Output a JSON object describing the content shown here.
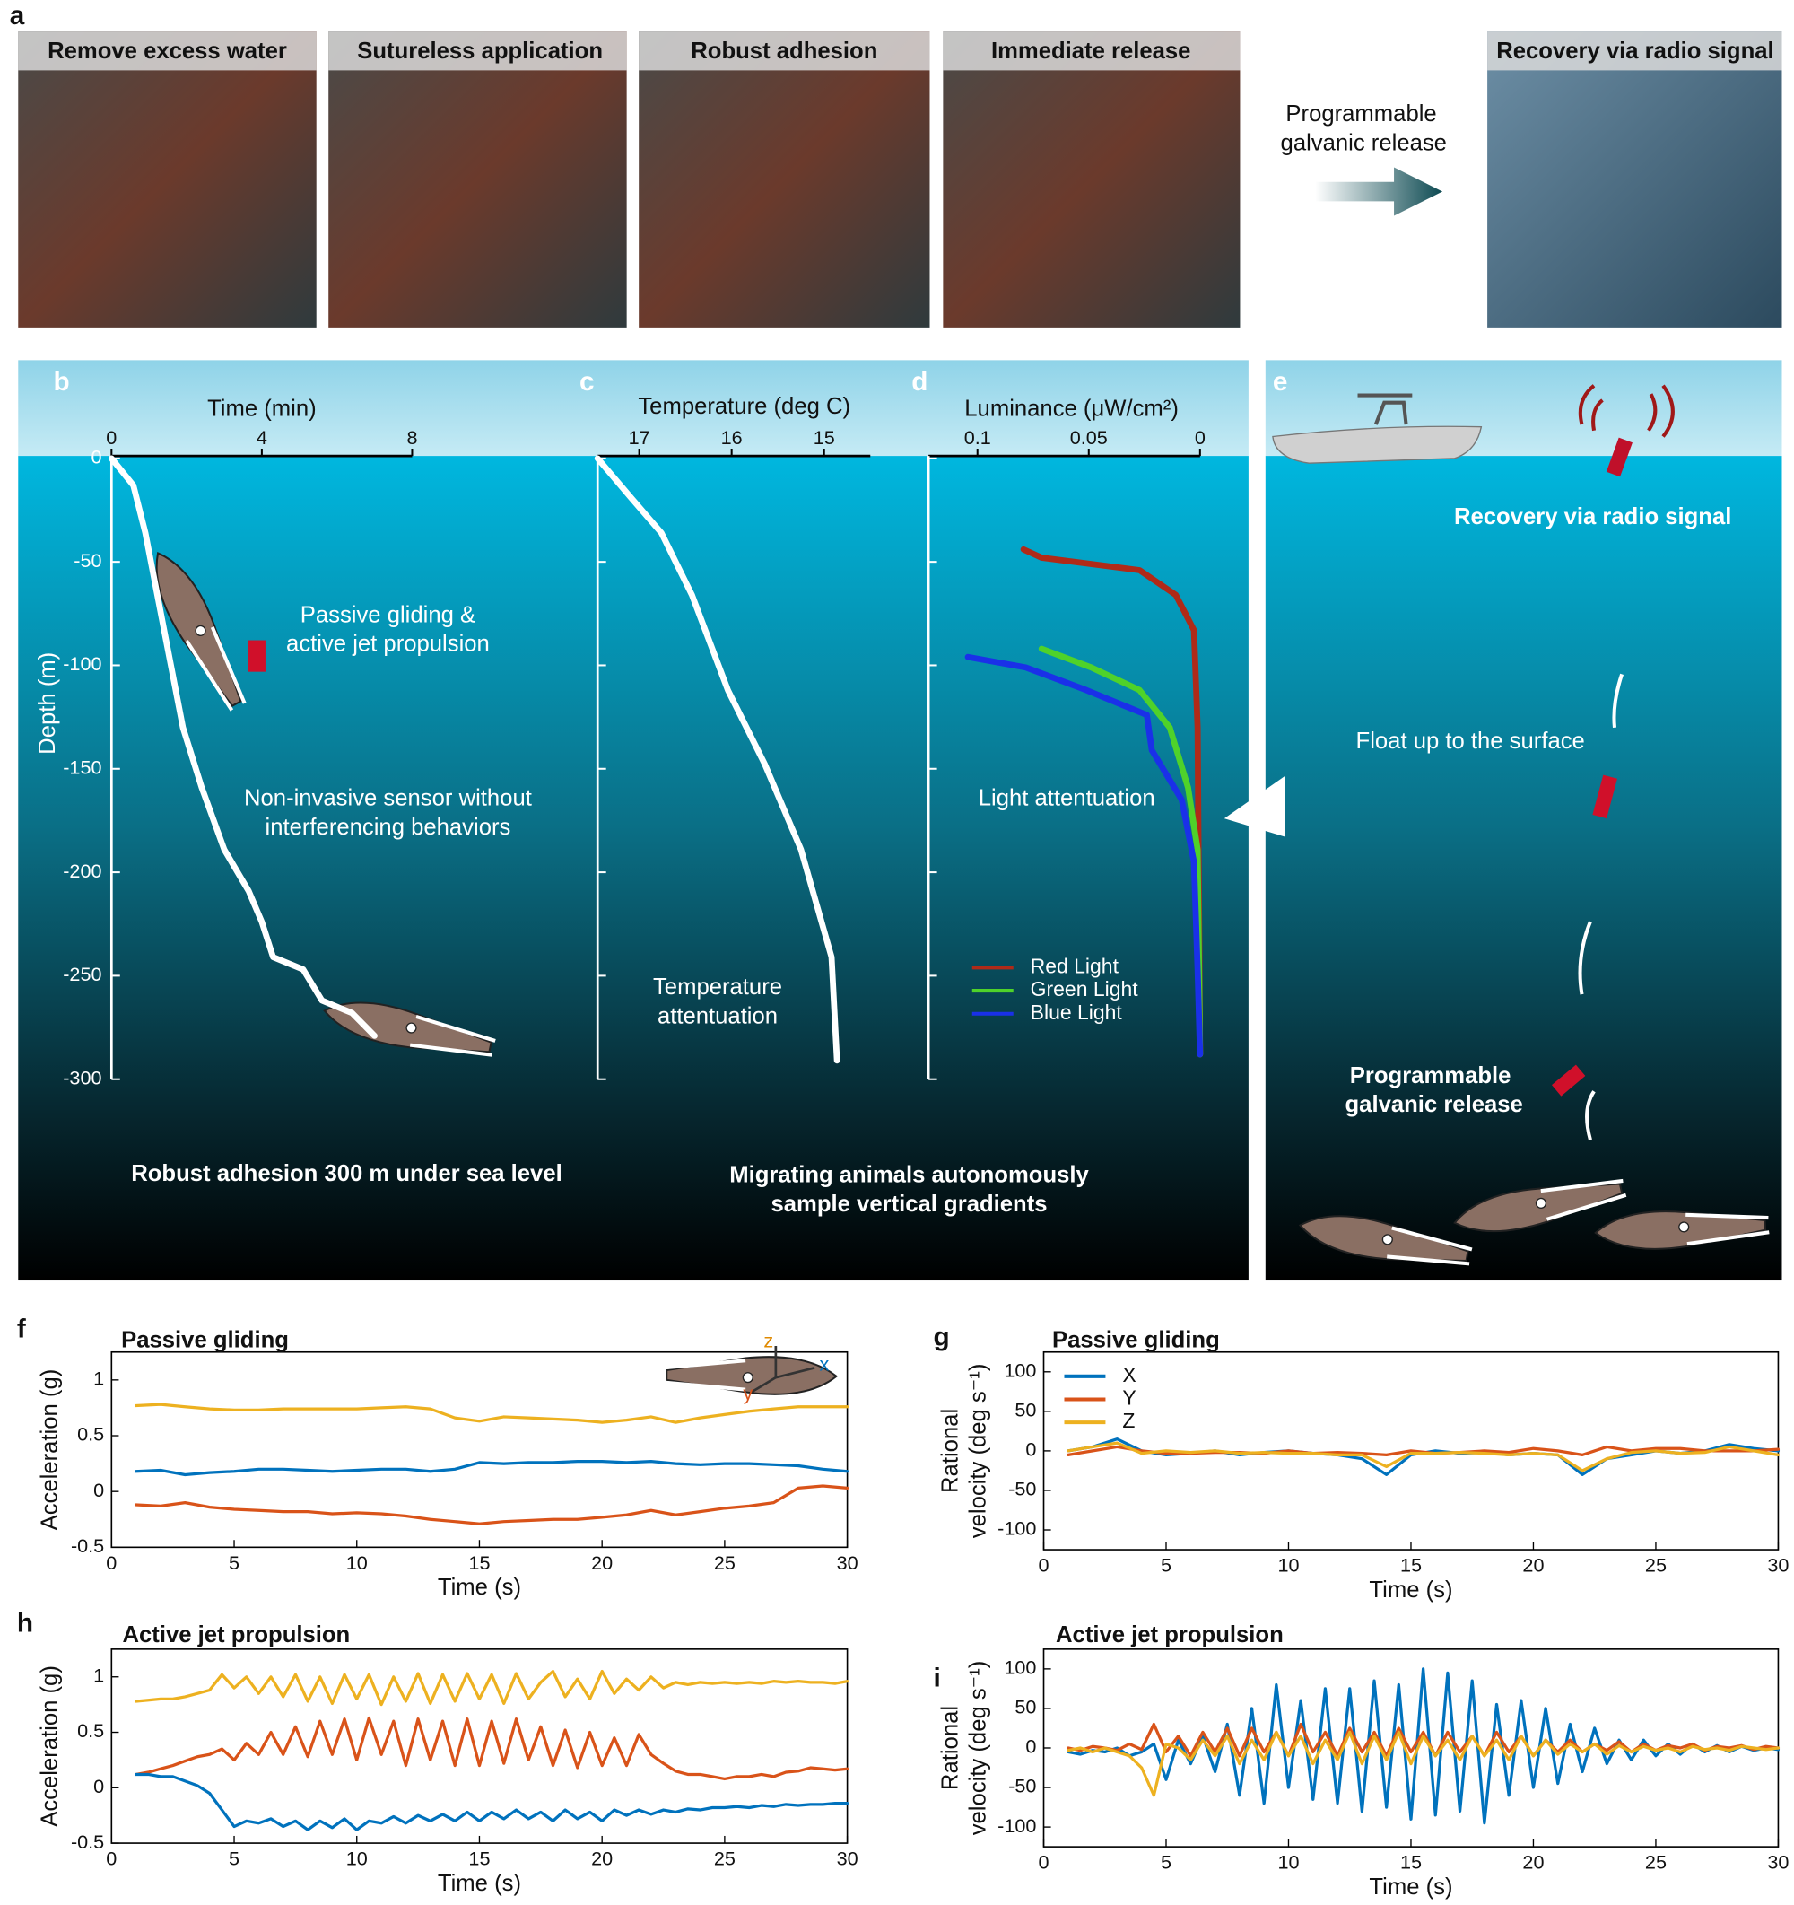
{
  "panel_a": {
    "label": "a",
    "photos": [
      "Remove excess water",
      "Sutureless application",
      "Robust adhesion",
      "Immediate release",
      "Recovery via radio signal"
    ],
    "arrow_text": [
      "Programmable",
      "galvanic release"
    ]
  },
  "panel_e": {
    "label": "e",
    "texts": [
      [
        "Recovery via radio signal"
      ],
      [
        "Float up to the surface"
      ],
      [
        "Programmable",
        "galvanic release"
      ]
    ]
  },
  "chart_data": [
    {
      "panel": "b",
      "type": "line",
      "xlabel": "Time (min)",
      "ylabel": "Depth (m)",
      "x": [
        0,
        0.58,
        0.9,
        1.4,
        1.9,
        2.4,
        3.0,
        3.65,
        4.0,
        4.3,
        5.1,
        5.6,
        6.4,
        7.0
      ],
      "series": [
        {
          "color": "#ffffff",
          "values": [
            0,
            -13,
            -36,
            -83,
            -130,
            -159,
            -189,
            -209,
            -224,
            -241,
            -247,
            -262,
            -268,
            -279
          ]
        }
      ],
      "xlim": [
        0,
        8
      ],
      "xticks": [
        0,
        4,
        8
      ],
      "ylim": [
        -300,
        0
      ],
      "yticks": [
        0,
        -50,
        -100,
        -150,
        -200,
        -250,
        -300
      ],
      "annotations": [
        [
          "Passive gliding &",
          "active jet propulsion"
        ],
        [
          "Non-invasive sensor without",
          "interferencing behaviors"
        ],
        [
          "Robust adhesion 300 m under sea level"
        ]
      ]
    },
    {
      "panel": "c",
      "type": "line",
      "xlabel": "Temperature (deg C)",
      "x": [
        17.45,
        17.09,
        16.76,
        16.43,
        16.04,
        15.64,
        15.25,
        14.92,
        14.86
      ],
      "series": [
        {
          "color": "#ffffff",
          "values": [
            0,
            -19,
            -36,
            -66,
            -112,
            -148,
            -189,
            -241,
            -291
          ]
        }
      ],
      "xlim": [
        17.45,
        14.5
      ],
      "xticks": [
        17,
        16,
        15
      ],
      "ylim": [
        -300,
        0
      ],
      "yticks": [
        0,
        -50,
        -100,
        -150,
        -200,
        -250,
        -300
      ],
      "annotations": [
        [
          "Temperature",
          "attentuation"
        ],
        [
          "Migrating animals autonomously",
          "sample vertical gradients"
        ]
      ]
    },
    {
      "panel": "d",
      "type": "line",
      "xlabel": "Luminance (μW/cm²)",
      "series": [
        {
          "name": "Red Light",
          "color": "#b02a18",
          "x": [
            0.0793,
            0.0712,
            0.0272,
            0.0109,
            0.0027,
            0.0011,
            0
          ],
          "values": [
            -44,
            -48,
            -54,
            -66,
            -83,
            -130,
            -288
          ]
        },
        {
          "name": "Green Light",
          "color": "#4fd22a",
          "x": [
            0.0712,
            0.0489,
            0.0272,
            0.0136,
            0.0054,
            0.0011,
            0
          ],
          "values": [
            -92,
            -101,
            -112,
            -130,
            -159,
            -189,
            -288
          ]
        },
        {
          "name": "Blue Light",
          "color": "#1a30e8",
          "x": [
            0.1043,
            0.0783,
            0.0511,
            0.0239,
            0.0217,
            0.0082,
            0.0027,
            0.0011,
            0
          ],
          "values": [
            -96,
            -101,
            -112,
            -124,
            -141,
            -165,
            -195,
            -247,
            -288
          ]
        }
      ],
      "xlim": [
        0.122,
        0
      ],
      "xticks": [
        0.1,
        0.05,
        0
      ],
      "ylim": [
        -300,
        0
      ],
      "yticks": [
        0,
        -50,
        -100,
        -150,
        -200,
        -250,
        -300
      ],
      "annotations": [
        [
          "Light attentuation"
        ]
      ]
    },
    {
      "panel": "f",
      "type": "line",
      "title": "Passive gliding",
      "xlabel": "Time (s)",
      "ylabel": [
        "Acceleration (g)"
      ],
      "inset_labels": [
        "z",
        "y",
        "x"
      ],
      "x": [
        1,
        2,
        3,
        4,
        5,
        6,
        7,
        8,
        9,
        10,
        11,
        12,
        13,
        14,
        15,
        16,
        17,
        18,
        19,
        20,
        21,
        22,
        23,
        24,
        25,
        26,
        27,
        28,
        29,
        30
      ],
      "series": [
        {
          "color": "#edb120",
          "values": [
            0.77,
            0.78,
            0.76,
            0.74,
            0.73,
            0.73,
            0.74,
            0.74,
            0.74,
            0.74,
            0.75,
            0.76,
            0.74,
            0.66,
            0.63,
            0.67,
            0.66,
            0.65,
            0.64,
            0.62,
            0.64,
            0.67,
            0.62,
            0.66,
            0.69,
            0.72,
            0.74,
            0.76,
            0.76,
            0.76
          ]
        },
        {
          "color": "#0072bd",
          "values": [
            0.18,
            0.19,
            0.15,
            0.17,
            0.18,
            0.2,
            0.2,
            0.19,
            0.18,
            0.19,
            0.2,
            0.2,
            0.18,
            0.2,
            0.26,
            0.25,
            0.26,
            0.26,
            0.27,
            0.27,
            0.26,
            0.27,
            0.25,
            0.24,
            0.25,
            0.25,
            0.24,
            0.23,
            0.2,
            0.18
          ]
        },
        {
          "color": "#d95319",
          "values": [
            -0.12,
            -0.13,
            -0.1,
            -0.14,
            -0.16,
            -0.17,
            -0.18,
            -0.18,
            -0.2,
            -0.19,
            -0.2,
            -0.22,
            -0.25,
            -0.27,
            -0.29,
            -0.27,
            -0.26,
            -0.25,
            -0.25,
            -0.23,
            -0.21,
            -0.17,
            -0.21,
            -0.18,
            -0.15,
            -0.13,
            -0.1,
            0.03,
            0.05,
            0.03
          ]
        }
      ],
      "xlim": [
        0,
        30
      ],
      "xticks": [
        0,
        5,
        10,
        15,
        20,
        25,
        30
      ],
      "ylim": [
        -0.5,
        1.25
      ],
      "yticks": [
        -0.5,
        0,
        0.5,
        1
      ]
    },
    {
      "panel": "g",
      "type": "line",
      "title": "Passive gliding",
      "xlabel": "Time (s)",
      "ylabel": [
        "Rational",
        "velocity (deg s⁻¹)"
      ],
      "x": [
        1,
        2,
        3,
        4,
        5,
        6,
        7,
        8,
        9,
        10,
        11,
        12,
        13,
        14,
        15,
        16,
        17,
        18,
        19,
        20,
        21,
        22,
        23,
        24,
        25,
        26,
        27,
        28,
        29,
        30
      ],
      "series": [
        {
          "name": "X",
          "color": "#0072bd",
          "values": [
            0,
            5,
            15,
            0,
            -5,
            -3,
            0,
            -5,
            -2,
            0,
            -3,
            -5,
            -10,
            -30,
            -5,
            0,
            -3,
            -2,
            -5,
            -3,
            -5,
            -30,
            -10,
            -5,
            0,
            -3,
            0,
            8,
            3,
            0
          ]
        },
        {
          "name": "Y",
          "color": "#d95319",
          "values": [
            -5,
            0,
            5,
            0,
            -3,
            -3,
            -2,
            -2,
            -3,
            0,
            -3,
            -2,
            -3,
            -5,
            0,
            -3,
            -2,
            0,
            -2,
            3,
            0,
            -5,
            5,
            0,
            3,
            3,
            0,
            0,
            0,
            2
          ]
        },
        {
          "name": "Z",
          "color": "#edb120",
          "values": [
            0,
            5,
            10,
            -3,
            0,
            -2,
            0,
            -3,
            -2,
            -3,
            -3,
            -5,
            -5,
            -20,
            -3,
            -3,
            -2,
            -3,
            -5,
            -3,
            -5,
            -25,
            -10,
            -2,
            0,
            -3,
            -2,
            5,
            0,
            -5
          ]
        }
      ],
      "xlim": [
        0,
        30
      ],
      "xticks": [
        0,
        5,
        10,
        15,
        20,
        25,
        30
      ],
      "ylim": [
        -125,
        125
      ],
      "yticks": [
        -100,
        -50,
        0,
        50,
        100
      ]
    },
    {
      "panel": "h",
      "type": "line",
      "title": "Active jet propulsion",
      "xlabel": "Time (s)",
      "ylabel": [
        "Acceleration (g)"
      ],
      "x": [
        1,
        1.5,
        2,
        2.5,
        3,
        3.5,
        4,
        4.5,
        5,
        5.5,
        6,
        6.5,
        7,
        7.5,
        8,
        8.5,
        9,
        9.5,
        10,
        10.5,
        11,
        11.5,
        12,
        12.5,
        13,
        13.5,
        14,
        14.5,
        15,
        15.5,
        16,
        16.5,
        17,
        17.5,
        18,
        18.5,
        19,
        19.5,
        20,
        20.5,
        21,
        21.5,
        22,
        22.5,
        23,
        23.5,
        24,
        24.5,
        25,
        25.5,
        26,
        26.5,
        27,
        27.5,
        28,
        28.5,
        29,
        29.5,
        30
      ],
      "series": [
        {
          "color": "#edb120",
          "values": [
            0.78,
            0.79,
            0.8,
            0.8,
            0.82,
            0.85,
            0.88,
            1.02,
            0.9,
            1.0,
            0.85,
            1.0,
            0.82,
            1.02,
            0.78,
            1.0,
            0.76,
            1.02,
            0.8,
            1.02,
            0.75,
            1.0,
            0.78,
            1.03,
            0.76,
            1.02,
            0.78,
            1.03,
            0.8,
            1.02,
            0.76,
            1.03,
            0.8,
            0.95,
            1.05,
            0.82,
            0.98,
            0.8,
            1.05,
            0.85,
            0.98,
            0.88,
            1.0,
            0.9,
            0.95,
            0.93,
            0.95,
            0.94,
            0.95,
            0.94,
            0.95,
            0.94,
            0.96,
            0.95,
            0.96,
            0.95,
            0.95,
            0.94,
            0.96
          ]
        },
        {
          "color": "#d95319",
          "values": [
            0.12,
            0.14,
            0.17,
            0.2,
            0.24,
            0.28,
            0.3,
            0.35,
            0.25,
            0.4,
            0.3,
            0.5,
            0.3,
            0.55,
            0.28,
            0.6,
            0.3,
            0.62,
            0.25,
            0.63,
            0.3,
            0.6,
            0.2,
            0.62,
            0.25,
            0.6,
            0.2,
            0.62,
            0.2,
            0.6,
            0.22,
            0.62,
            0.25,
            0.55,
            0.2,
            0.52,
            0.18,
            0.5,
            0.2,
            0.45,
            0.2,
            0.48,
            0.3,
            0.22,
            0.15,
            0.12,
            0.12,
            0.1,
            0.08,
            0.1,
            0.1,
            0.12,
            0.1,
            0.14,
            0.15,
            0.18,
            0.17,
            0.16,
            0.17
          ]
        },
        {
          "color": "#0072bd",
          "values": [
            0.12,
            0.12,
            0.1,
            0.1,
            0.06,
            0.02,
            -0.05,
            -0.2,
            -0.35,
            -0.3,
            -0.32,
            -0.28,
            -0.35,
            -0.3,
            -0.38,
            -0.3,
            -0.36,
            -0.28,
            -0.38,
            -0.3,
            -0.32,
            -0.26,
            -0.32,
            -0.25,
            -0.3,
            -0.24,
            -0.3,
            -0.22,
            -0.3,
            -0.22,
            -0.28,
            -0.2,
            -0.28,
            -0.22,
            -0.3,
            -0.2,
            -0.28,
            -0.22,
            -0.3,
            -0.2,
            -0.25,
            -0.2,
            -0.24,
            -0.2,
            -0.22,
            -0.19,
            -0.2,
            -0.18,
            -0.18,
            -0.17,
            -0.18,
            -0.16,
            -0.17,
            -0.15,
            -0.16,
            -0.15,
            -0.15,
            -0.14,
            -0.14
          ]
        }
      ],
      "xlim": [
        0,
        30
      ],
      "xticks": [
        0,
        5,
        10,
        15,
        20,
        25,
        30
      ],
      "ylim": [
        -0.5,
        1.25
      ],
      "yticks": [
        -0.5,
        0,
        0.5,
        1
      ]
    },
    {
      "panel": "i",
      "type": "line",
      "title": "Active jet propulsion",
      "xlabel": "Time (s)",
      "ylabel": [
        "Rational",
        "velocity (deg s⁻¹)"
      ],
      "x": [
        1,
        1.5,
        2,
        2.5,
        3,
        3.5,
        4,
        4.5,
        5,
        5.5,
        6,
        6.5,
        7,
        7.5,
        8,
        8.5,
        9,
        9.5,
        10,
        10.5,
        11,
        11.5,
        12,
        12.5,
        13,
        13.5,
        14,
        14.5,
        15,
        15.5,
        16,
        16.5,
        17,
        17.5,
        18,
        18.5,
        19,
        19.5,
        20,
        20.5,
        21,
        21.5,
        22,
        22.5,
        23,
        23.5,
        24,
        24.5,
        25,
        25.5,
        26,
        26.5,
        27,
        27.5,
        28,
        28.5,
        29,
        29.5,
        30
      ],
      "series": [
        {
          "color": "#0072bd",
          "values": [
            -5,
            -8,
            -3,
            -5,
            0,
            -10,
            -5,
            5,
            -40,
            10,
            -20,
            15,
            -30,
            30,
            -60,
            50,
            -70,
            80,
            -50,
            60,
            -65,
            75,
            -70,
            75,
            -80,
            85,
            -75,
            80,
            -90,
            100,
            -85,
            95,
            -80,
            85,
            -95,
            55,
            -60,
            60,
            -50,
            50,
            -45,
            30,
            -30,
            25,
            -20,
            10,
            -15,
            10,
            -10,
            5,
            -8,
            5,
            -5,
            3,
            -5,
            2,
            -3,
            0,
            -2
          ]
        },
        {
          "color": "#d95319",
          "values": [
            0,
            -3,
            2,
            0,
            -3,
            5,
            -2,
            30,
            -5,
            15,
            -10,
            20,
            -5,
            25,
            -10,
            25,
            -5,
            20,
            -10,
            30,
            -5,
            20,
            -10,
            25,
            -5,
            20,
            -10,
            25,
            -5,
            20,
            -10,
            20,
            -5,
            15,
            -10,
            20,
            -5,
            15,
            -10,
            10,
            -5,
            10,
            -5,
            5,
            -3,
            8,
            -5,
            5,
            -3,
            3,
            0,
            5,
            -3,
            2,
            0,
            3,
            -2,
            2,
            0
          ]
        },
        {
          "color": "#edb120",
          "values": [
            -3,
            0,
            -5,
            0,
            -5,
            -10,
            -25,
            -60,
            5,
            0,
            -15,
            10,
            -10,
            15,
            -20,
            10,
            -15,
            20,
            -10,
            15,
            -20,
            10,
            -15,
            20,
            -20,
            15,
            -15,
            20,
            -20,
            15,
            -10,
            10,
            -15,
            15,
            -10,
            10,
            -15,
            15,
            -10,
            10,
            -8,
            5,
            -5,
            5,
            -8,
            3,
            -5,
            2,
            -3,
            0,
            -5,
            2,
            -2,
            0,
            -3,
            2,
            0,
            -2,
            0
          ]
        }
      ],
      "xlim": [
        0,
        30
      ],
      "xticks": [
        0,
        5,
        10,
        15,
        20,
        25,
        30
      ],
      "ylim": [
        -125,
        125
      ],
      "yticks": [
        -100,
        -50,
        0,
        50,
        100
      ]
    }
  ]
}
